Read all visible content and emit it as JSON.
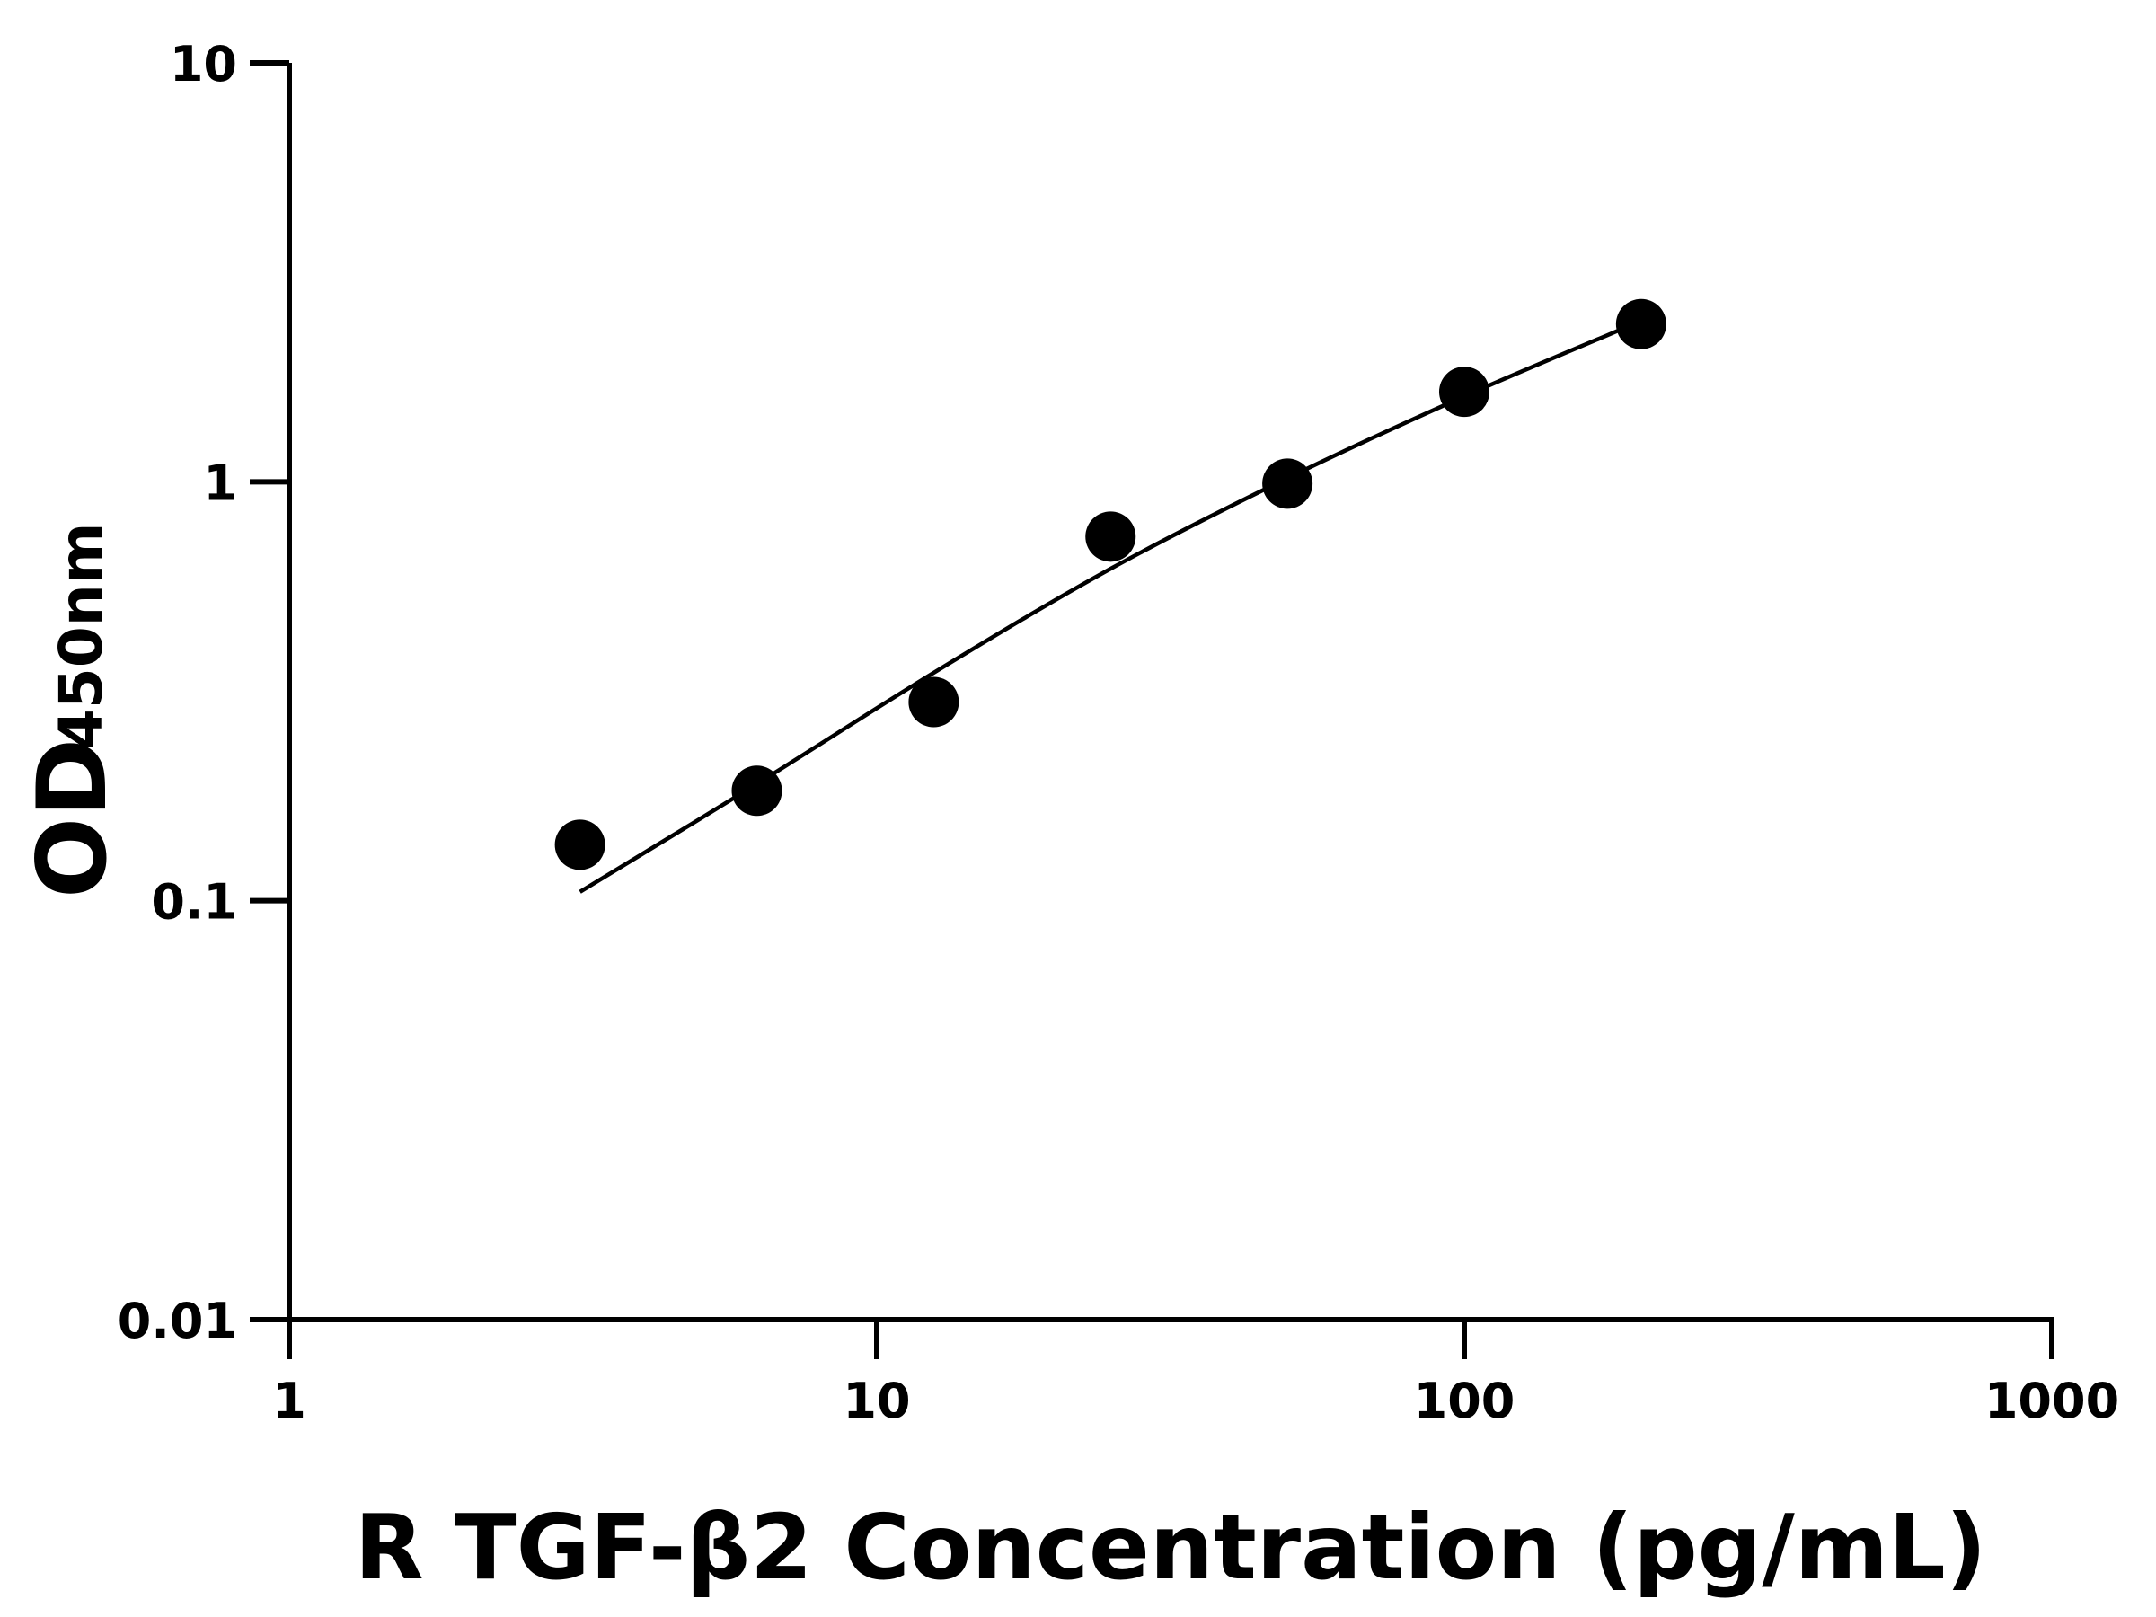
{
  "chart_data": {
    "type": "scatter",
    "title": "",
    "xlabel": "R TGF-β2 Concentration (pg/mL)",
    "ylabel_main": "OD",
    "ylabel_sub": "450nm",
    "x_scale": "log",
    "y_scale": "log",
    "xlim": [
      1,
      1000
    ],
    "ylim": [
      0.01,
      10
    ],
    "x_ticks": [
      "1",
      "10",
      "100",
      "1000"
    ],
    "y_ticks": [
      "0.01",
      "0.1",
      "1",
      "10"
    ],
    "grid": false,
    "legend": "none",
    "series": [
      {
        "type": "scatter",
        "marker": "filled-circle",
        "color": "#000000",
        "x": [
          3.125,
          6.25,
          12.5,
          25,
          50,
          100,
          200
        ],
        "y": [
          0.136,
          0.183,
          0.298,
          0.74,
          0.99,
          1.64,
          2.38
        ]
      },
      {
        "type": "fit-line",
        "color": "#000000",
        "x": [
          3.125,
          6.25,
          12.5,
          25,
          50,
          100,
          200
        ],
        "y": [
          0.105,
          0.19,
          0.35,
          0.62,
          1.02,
          1.6,
          2.42
        ]
      }
    ]
  }
}
